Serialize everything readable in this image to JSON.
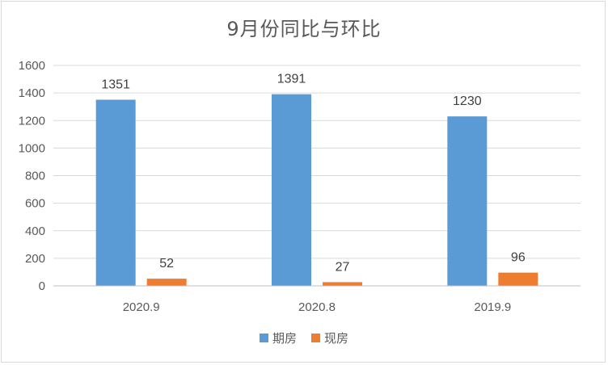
{
  "chart_data": {
    "type": "bar",
    "title": "9月份同比与环比",
    "categories": [
      "2020.9",
      "2020.8",
      "2019.9"
    ],
    "series": [
      {
        "name": "期房",
        "values": [
          1351,
          1391,
          1230
        ],
        "color": "#5B9BD5"
      },
      {
        "name": "现房",
        "values": [
          52,
          27,
          96
        ],
        "color": "#ED7D31"
      }
    ],
    "ylim": [
      0,
      1600
    ],
    "yticks": [
      0,
      200,
      400,
      600,
      800,
      1000,
      1200,
      1400,
      1600
    ],
    "grid": true,
    "legend_position": "bottom"
  }
}
